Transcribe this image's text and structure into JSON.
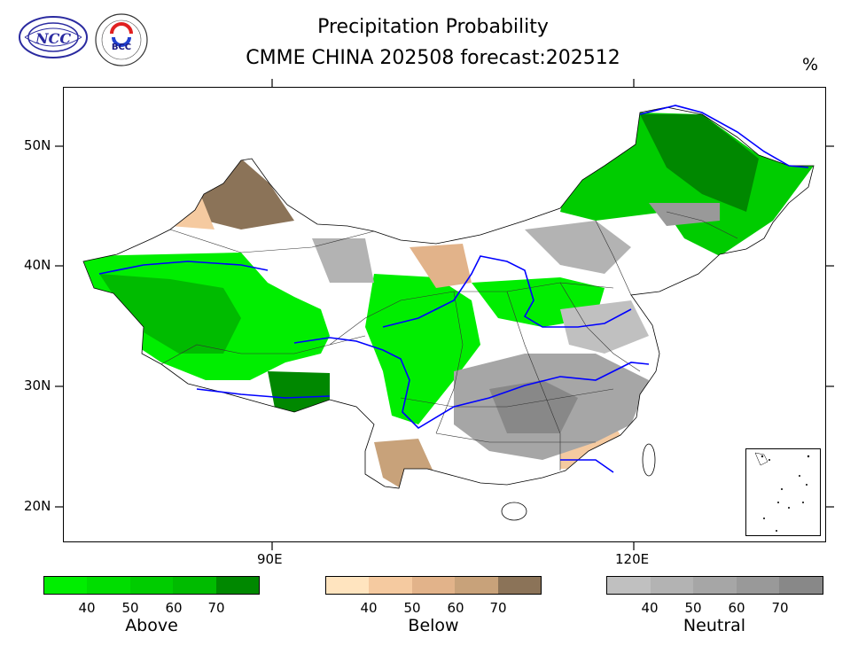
{
  "header": {
    "title_line1": "Precipitation Probability",
    "title_line2": "CMME CHINA 202508 forecast:202512",
    "unit": "%"
  },
  "logos": {
    "left": {
      "icon": "ncc-logo",
      "text": "NCC"
    },
    "right": {
      "icon": "bcc-logo",
      "text": "BCC"
    }
  },
  "map": {
    "lat_labels": [
      "50N",
      "40N",
      "30N",
      "20N"
    ],
    "lon_labels": [
      "90E",
      "120E"
    ],
    "colors": {
      "river": "#0000ff",
      "border": "#000000"
    }
  },
  "legend": {
    "above": {
      "name": "Above",
      "ticks": [
        "40",
        "50",
        "60",
        "70"
      ],
      "colors": [
        "#00ee00",
        "#00dd00",
        "#00cc00",
        "#00bb00",
        "#008800"
      ]
    },
    "below": {
      "name": "Below",
      "ticks": [
        "40",
        "50",
        "60",
        "70"
      ],
      "colors": [
        "#ffe4bf",
        "#f5caa0",
        "#e2b38a",
        "#c8a27a",
        "#8b7358"
      ]
    },
    "neutral": {
      "name": "Neutral",
      "ticks": [
        "40",
        "50",
        "60",
        "70"
      ],
      "colors": [
        "#c0c0c0",
        "#b3b3b3",
        "#a6a6a6",
        "#999999",
        "#888888"
      ]
    }
  }
}
